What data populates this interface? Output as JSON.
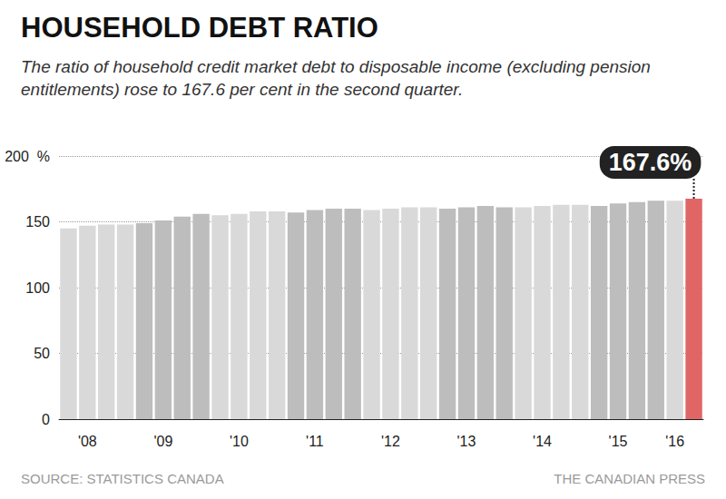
{
  "chart_data": {
    "type": "bar",
    "title": "HOUSEHOLD DEBT RATIO",
    "subtitle": "The ratio of household credit market debt to disposable income (excluding pension entitlements) rose to 167.6 per cent in the second quarter.",
    "categories": [
      null,
      "'08",
      null,
      null,
      null,
      "'09",
      null,
      null,
      null,
      "'10",
      null,
      null,
      null,
      "'11",
      null,
      null,
      null,
      "'12",
      null,
      null,
      null,
      "'13",
      null,
      null,
      null,
      "'14",
      null,
      null,
      null,
      "'15",
      null,
      null,
      "'16",
      null
    ],
    "values": [
      145,
      147,
      148,
      148,
      149,
      151,
      154,
      156,
      155,
      156,
      158,
      158,
      157,
      159,
      160,
      160,
      159,
      160,
      161,
      161,
      160,
      161,
      162,
      161,
      161,
      162,
      163,
      163,
      162,
      164,
      165,
      166,
      166,
      167.6
    ],
    "colors": [
      "#d9d9d9",
      "#d9d9d9",
      "#d9d9d9",
      "#d9d9d9",
      "#bdbdbd",
      "#bdbdbd",
      "#bdbdbd",
      "#bdbdbd",
      "#d9d9d9",
      "#d9d9d9",
      "#d9d9d9",
      "#d9d9d9",
      "#bdbdbd",
      "#bdbdbd",
      "#bdbdbd",
      "#bdbdbd",
      "#d9d9d9",
      "#d9d9d9",
      "#d9d9d9",
      "#d9d9d9",
      "#bdbdbd",
      "#bdbdbd",
      "#bdbdbd",
      "#bdbdbd",
      "#d9d9d9",
      "#d9d9d9",
      "#d9d9d9",
      "#d9d9d9",
      "#bdbdbd",
      "#bdbdbd",
      "#bdbdbd",
      "#bdbdbd",
      "#d9d9d9",
      "#e06666"
    ],
    "ylim": [
      0,
      200
    ],
    "yticks": [
      0,
      50,
      100,
      150,
      {
        "value": 200,
        "label": "200  %"
      }
    ],
    "grid": true,
    "annotation": "167.6%",
    "source": "SOURCE: STATISTICS CANADA",
    "credit": "THE CANADIAN PRESS"
  }
}
